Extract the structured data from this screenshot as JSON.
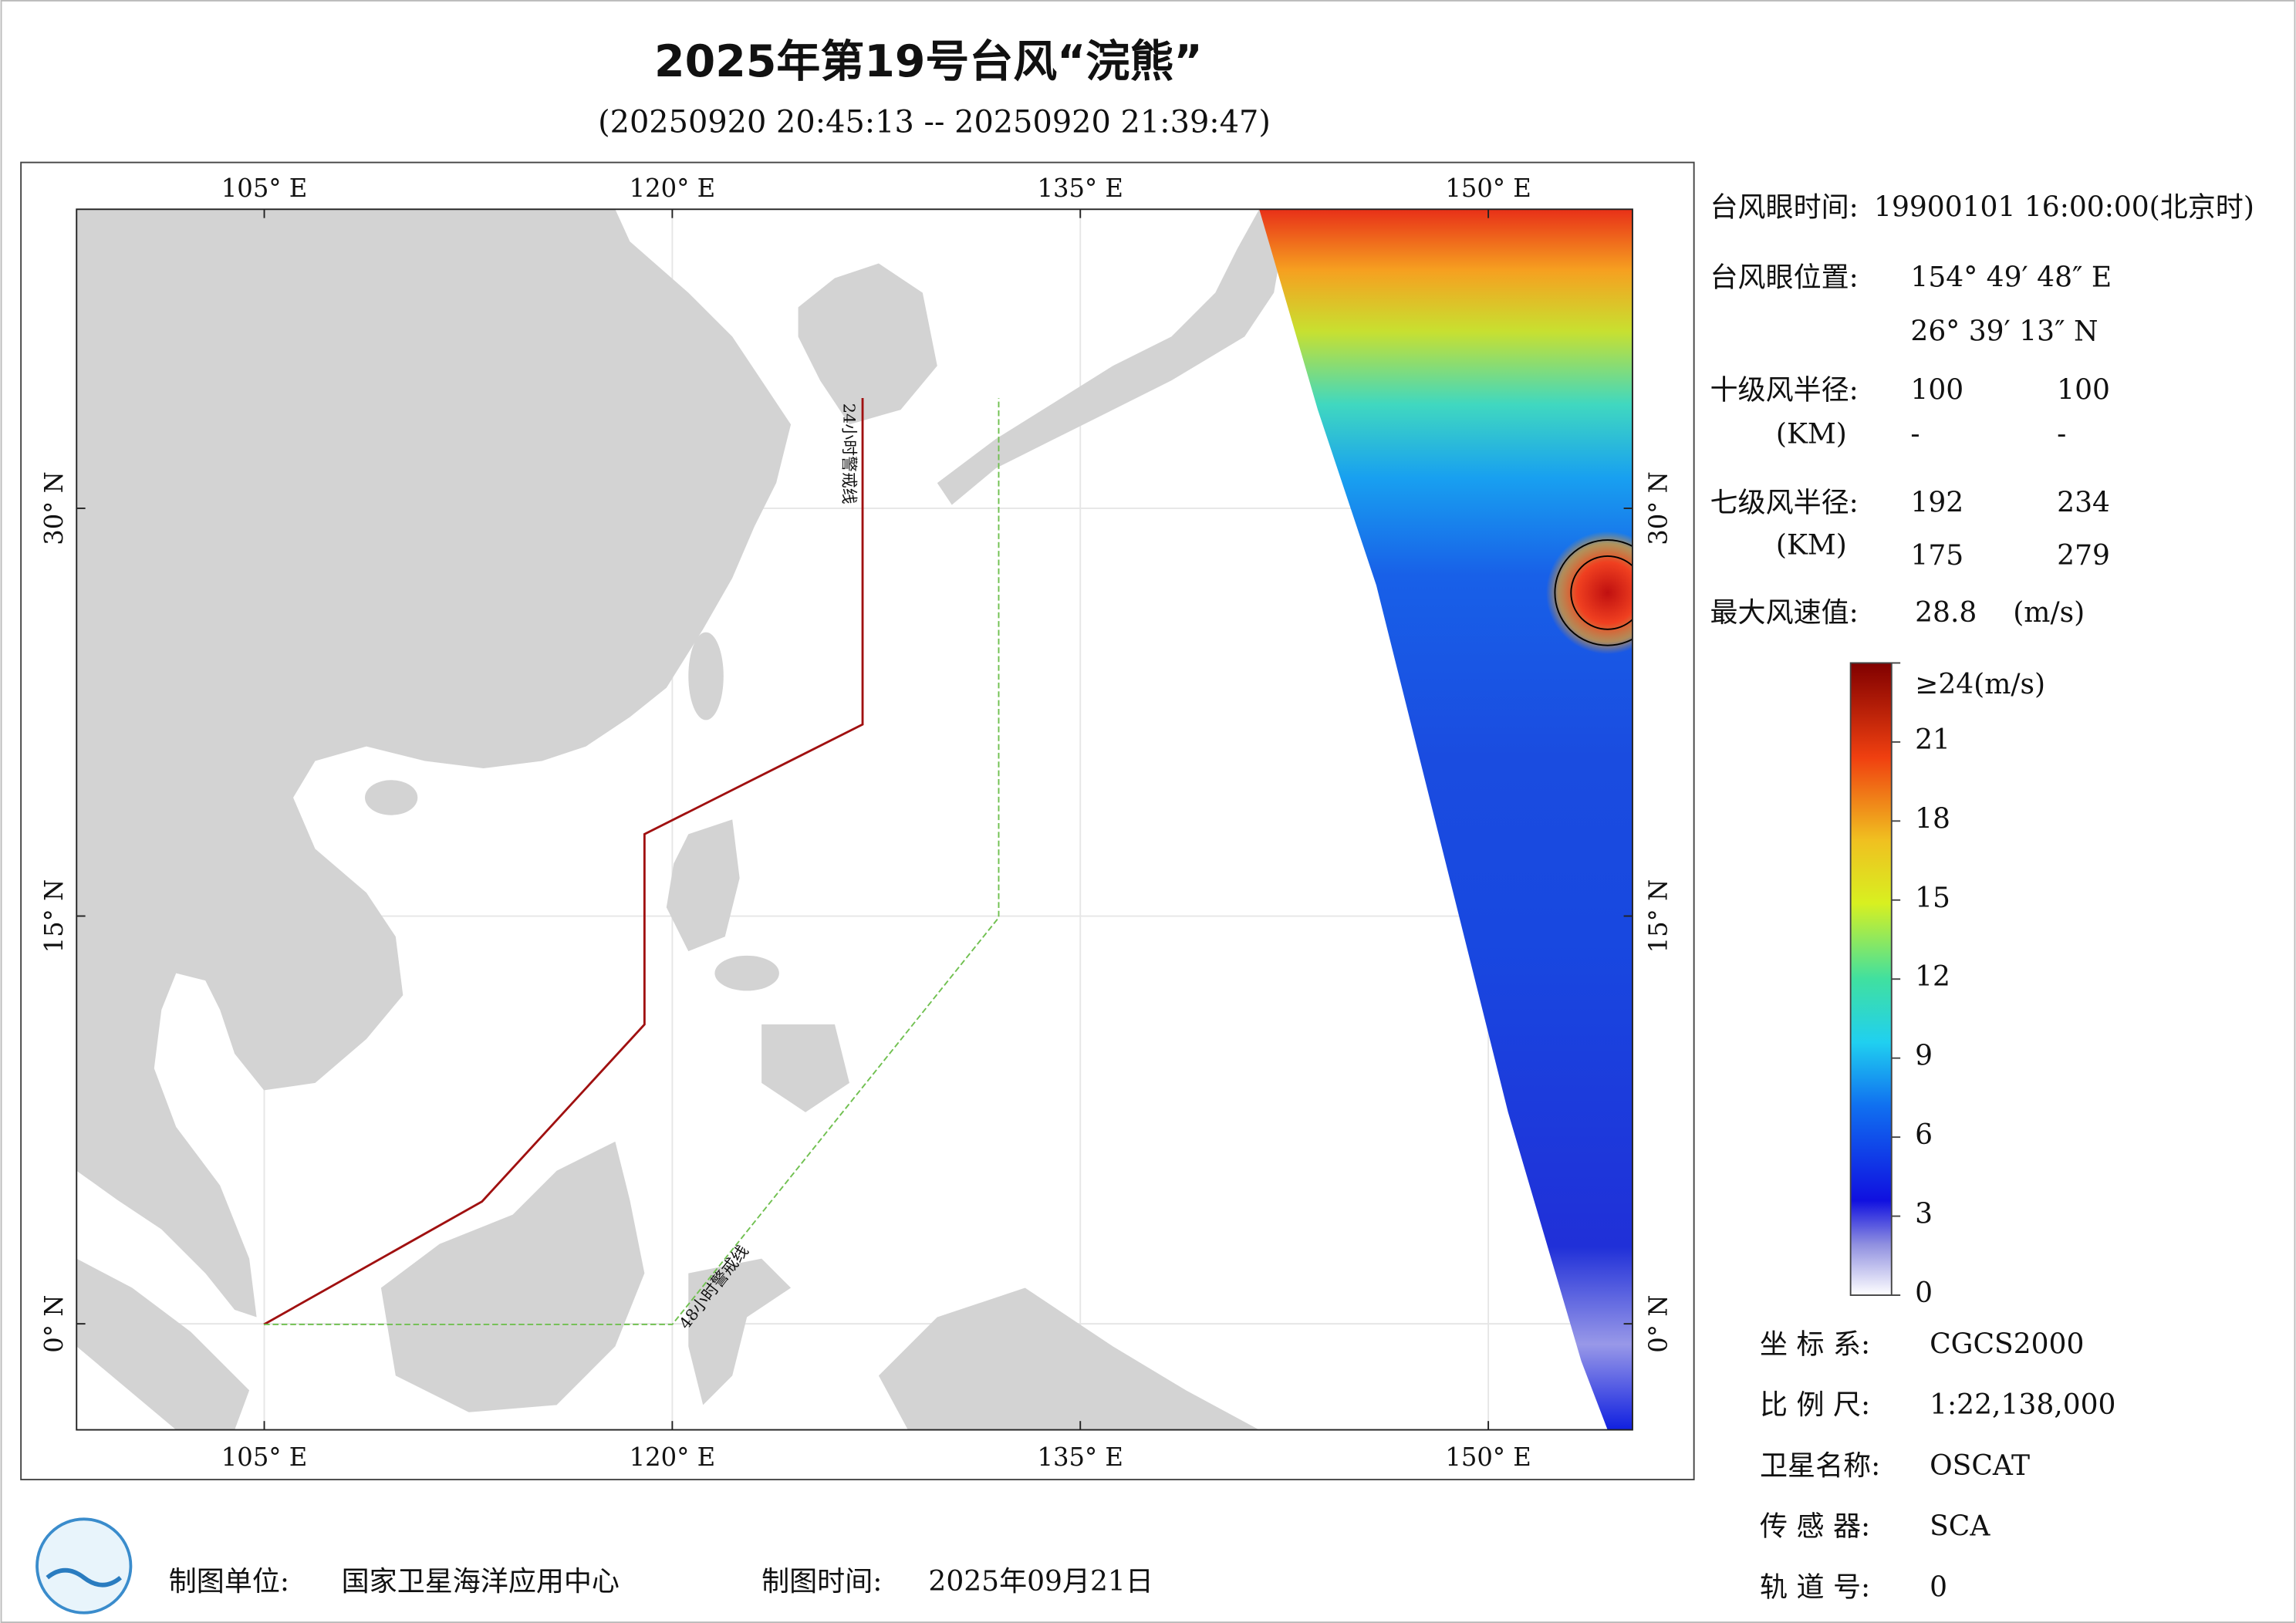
{
  "header": {
    "title": "2025年第19号台风“浣熊”",
    "subtitle": "(20250920 20:45:13 -- 20250920 21:39:47)"
  },
  "map": {
    "xlim": [
      98.1,
      155.3
    ],
    "ylim": [
      -3.9,
      41.0
    ],
    "xticks": [
      {
        "value": 105,
        "label": "105° E"
      },
      {
        "value": 120,
        "label": "120° E"
      },
      {
        "value": 135,
        "label": "135° E"
      },
      {
        "value": 150,
        "label": "150° E"
      }
    ],
    "yticks": [
      {
        "value": 0,
        "label": "0° N"
      },
      {
        "value": 15,
        "label": "15° N"
      },
      {
        "value": 30,
        "label": "30° N"
      }
    ],
    "line_24h_label": "24小时警戒线",
    "line_48h_label": "48小时警戒线"
  },
  "info": {
    "eye_time_label": "台风眼时间:",
    "eye_time": "19900101 16:00:00(北京时)",
    "eye_pos_label": "台风眼位置:",
    "eye_lon": "154° 49′ 48″ E",
    "eye_lat": "26° 39′ 13″ N",
    "r10_label": "十级风半径:",
    "r10_unit": "(KM)",
    "r10": [
      [
        "100",
        "100"
      ],
      [
        "-",
        "-"
      ]
    ],
    "r7_label": "七级风半径:",
    "r7_unit": "(KM)",
    "r7": [
      [
        "192",
        "234"
      ],
      [
        "175",
        "279"
      ]
    ],
    "vmax_label": "最大风速值:",
    "vmax": "28.8",
    "vmax_unit": "(m/s)"
  },
  "colorbar": {
    "lim": [
      0,
      24
    ],
    "ticks": [
      0,
      3,
      6,
      9,
      12,
      15,
      18,
      21,
      {
        "value": 24,
        "label": "≥24(m/s)"
      }
    ]
  },
  "meta": [
    [
      "坐 标 系:",
      "CGCS2000"
    ],
    [
      "比 例 尺:",
      "1:22,138,000"
    ],
    [
      "卫星名称:",
      "OSCAT"
    ],
    [
      "传 感 器:",
      "SCA"
    ],
    [
      "轨 道 号:",
      "0"
    ]
  ],
  "footer": {
    "producer_label": "制图单位:",
    "producer": "国家卫星海洋应用中心",
    "time_label": "制图时间:",
    "time": "2025年09月21日"
  }
}
